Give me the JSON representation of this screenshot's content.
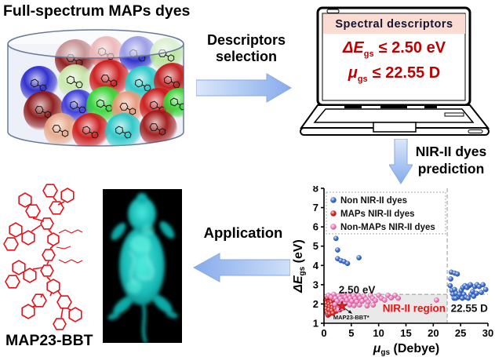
{
  "title": "Full-spectrum MAPs dyes",
  "steps": {
    "descriptors": {
      "line1": "Descriptors",
      "line2": "selection"
    },
    "prediction": {
      "line1": "NIR-II dyes",
      "line2": "prediction"
    },
    "application": {
      "label": "Application"
    }
  },
  "laptop": {
    "header": "Spectral descriptors",
    "criteria": [
      {
        "sym": "ΔE",
        "sub": "gs",
        "rest": "≤ 2.50 eV"
      },
      {
        "sym": "μ",
        "sub": "gs",
        "rest": "≤ 22.55 D"
      }
    ]
  },
  "molecule": {
    "label": "MAP23-BBT",
    "color": "#e8101a"
  },
  "colors": {
    "accent_red": "#c00000",
    "laptop_header_bg": "#fbdcd3",
    "arrow_fill_light": "#dce8fa",
    "arrow_fill_dark": "#86abec",
    "arrow_border": "#8aa8e0",
    "region_fill": "#e9e9e9",
    "region_label": "#ee1111",
    "mouse_glow": "#17c9c4"
  },
  "chart_data": {
    "type": "scatter",
    "title": "",
    "xlabel": "μgs (Debye)",
    "ylabel": "ΔEgs (eV)",
    "xlabel_parts": {
      "sym": "μ",
      "sub": "gs",
      "rest": " (Debye)"
    },
    "ylabel_parts": {
      "sym": "ΔE",
      "sub": "gs",
      "rest": " (eV)"
    },
    "xlim": [
      0,
      30
    ],
    "ylim": [
      1,
      8
    ],
    "xticks": [
      0,
      5,
      10,
      15,
      20,
      25,
      30
    ],
    "yticks": [
      1,
      2,
      3,
      4,
      5,
      6,
      7,
      8
    ],
    "grid": false,
    "legend_position": "upper left",
    "thresholds": {
      "x": 22.55,
      "y": 2.5
    },
    "series": [
      {
        "name": "Non NIR-II dyes",
        "color": "#3a6fd8",
        "points": [
          [
            2.2,
            5.4
          ],
          [
            2.5,
            4.8
          ],
          [
            2.5,
            4.35
          ],
          [
            3.1,
            4.25
          ],
          [
            3.7,
            4.2
          ],
          [
            4.3,
            4.1
          ],
          [
            6.4,
            4.4
          ],
          [
            23.3,
            3.65
          ],
          [
            23.9,
            3.6
          ],
          [
            24.4,
            3.55
          ],
          [
            23.2,
            3.3
          ],
          [
            23.1,
            2.95
          ],
          [
            23.4,
            2.7
          ],
          [
            23.6,
            2.5
          ],
          [
            23.9,
            2.75
          ],
          [
            24.2,
            2.55
          ],
          [
            23.8,
            2.3
          ],
          [
            24.5,
            2.35
          ],
          [
            24.8,
            2.5
          ],
          [
            25.1,
            2.7
          ],
          [
            25.4,
            2.85
          ],
          [
            25.8,
            2.95
          ],
          [
            26.2,
            2.85
          ],
          [
            26.6,
            2.95
          ],
          [
            25.6,
            2.5
          ],
          [
            26.0,
            2.35
          ],
          [
            26.4,
            2.3
          ],
          [
            26.9,
            2.5
          ],
          [
            27.2,
            2.65
          ],
          [
            27.6,
            2.9
          ],
          [
            28.0,
            3.0
          ],
          [
            28.4,
            2.9
          ],
          [
            27.4,
            2.4
          ],
          [
            27.9,
            2.55
          ],
          [
            29.1,
            3.0
          ],
          [
            29.6,
            2.75
          ],
          [
            26.8,
            3.0
          ],
          [
            28.8,
            2.6
          ],
          [
            24.1,
            2.3
          ],
          [
            25.3,
            2.3
          ]
        ]
      },
      {
        "name": "MAPs NIR-II dyes",
        "color": "#e62020",
        "points": [
          [
            0.3,
            2.2
          ],
          [
            0.45,
            2.05
          ],
          [
            0.55,
            1.9
          ],
          [
            0.35,
            1.75
          ],
          [
            0.5,
            1.6
          ],
          [
            0.65,
            1.5
          ],
          [
            0.75,
            1.42
          ],
          [
            0.85,
            2.15
          ],
          [
            0.95,
            2.0
          ],
          [
            1.05,
            1.85
          ],
          [
            0.9,
            1.7
          ],
          [
            1.15,
            1.58
          ],
          [
            1.0,
            1.48
          ],
          [
            1.35,
            2.1
          ],
          [
            1.45,
            1.95
          ],
          [
            1.55,
            1.8
          ],
          [
            1.4,
            1.65
          ],
          [
            1.65,
            1.52
          ],
          [
            1.95,
            1.9
          ],
          [
            2.05,
            1.75
          ],
          [
            2.25,
            1.63
          ],
          [
            2.55,
            1.78
          ],
          [
            1.75,
            2.2
          ],
          [
            0.6,
            2.3
          ],
          [
            2.9,
            1.7
          ]
        ]
      },
      {
        "name": "Non-MAPs NIR-II dyes",
        "color": "#ff7fc4",
        "points": [
          [
            0.8,
            2.45
          ],
          [
            1.3,
            2.35
          ],
          [
            1.8,
            2.5
          ],
          [
            2.1,
            2.3
          ],
          [
            2.4,
            2.15
          ],
          [
            2.0,
            1.98
          ],
          [
            2.7,
            2.42
          ],
          [
            3.0,
            2.28
          ],
          [
            3.35,
            2.15
          ],
          [
            2.9,
            1.95
          ],
          [
            3.6,
            2.5
          ],
          [
            3.9,
            2.35
          ],
          [
            4.2,
            2.2
          ],
          [
            3.8,
            2.0
          ],
          [
            4.5,
            2.45
          ],
          [
            4.8,
            2.3
          ],
          [
            5.1,
            2.15
          ],
          [
            4.7,
            1.95
          ],
          [
            5.4,
            2.42
          ],
          [
            5.7,
            2.28
          ],
          [
            6.0,
            2.12
          ],
          [
            5.5,
            1.92
          ],
          [
            6.3,
            2.45
          ],
          [
            6.6,
            2.3
          ],
          [
            7.0,
            2.15
          ],
          [
            6.5,
            1.95
          ],
          [
            7.3,
            2.4
          ],
          [
            7.7,
            2.25
          ],
          [
            8.1,
            2.1
          ],
          [
            8.5,
            2.45
          ],
          [
            8.9,
            2.3
          ],
          [
            9.4,
            2.18
          ],
          [
            10.0,
            2.45
          ],
          [
            10.5,
            2.3
          ],
          [
            11.1,
            2.2
          ],
          [
            11.7,
            2.45
          ],
          [
            12.3,
            2.32
          ],
          [
            13.0,
            2.45
          ],
          [
            13.6,
            2.3
          ],
          [
            20.6,
            2.2
          ],
          [
            3.4,
            1.78
          ],
          [
            2.6,
            1.7
          ],
          [
            9.0,
            1.95
          ],
          [
            7.9,
            1.9
          ]
        ]
      }
    ],
    "star": {
      "label": "MAP23-BBT*",
      "x": 3.3,
      "y": 1.9,
      "color": "#e62020"
    },
    "annotations": [
      {
        "text": "2.50 eV",
        "x": 2.7,
        "y": 2.55,
        "color": "#111111",
        "size": 13.5,
        "anchor": "start"
      },
      {
        "text": "22.55 D",
        "x": 23.2,
        "y": 1.6,
        "color": "#111111",
        "size": 13.5,
        "anchor": "start"
      },
      {
        "text": "NIR-II region",
        "x": 16.5,
        "y": 1.6,
        "color": "#ee1111",
        "size": 13.5,
        "anchor": "middle"
      },
      {
        "text": "MAP23-BBT*",
        "x": 5.0,
        "y": 1.21,
        "color": "#111111",
        "size": 7.5,
        "anchor": "middle"
      }
    ]
  }
}
